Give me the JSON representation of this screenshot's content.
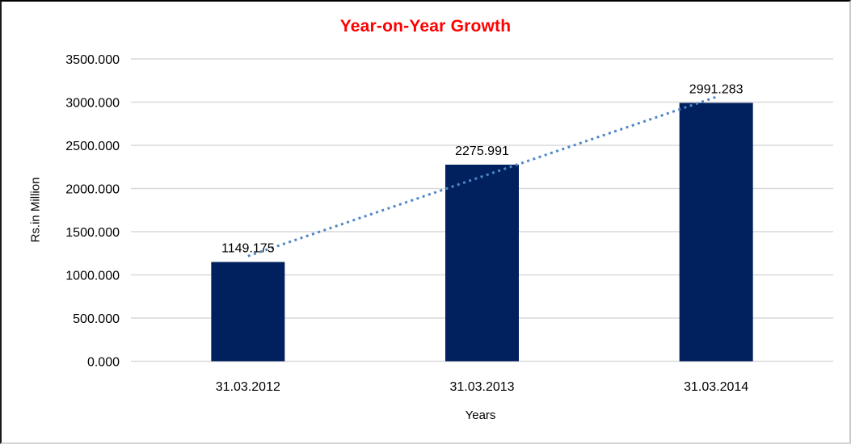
{
  "chart_data": {
    "type": "bar",
    "title": "Year-on-Year Growth",
    "title_color": "#ff0000",
    "xlabel": "Years",
    "ylabel": "Rs.in Million",
    "categories": [
      "31.03.2012",
      "31.03.2013",
      "31.03.2014"
    ],
    "values": [
      1149.175,
      2275.991,
      2991.283
    ],
    "data_labels": [
      "1149.175",
      "2275.991",
      "2991.283"
    ],
    "ylim": [
      0,
      3500
    ],
    "ytick_step": 500,
    "yticks": [
      "0.000",
      "500.000",
      "1000.000",
      "1500.000",
      "2000.000",
      "2500.000",
      "3000.000",
      "3500.000"
    ],
    "grid": "horizontal-only",
    "legend": "none",
    "bar_color": "#01215e",
    "gridline_color": "#d9d9d9",
    "text_color": "#000000",
    "trendline": {
      "type": "linear",
      "style": "dotted",
      "color": "#4f87c7"
    }
  }
}
